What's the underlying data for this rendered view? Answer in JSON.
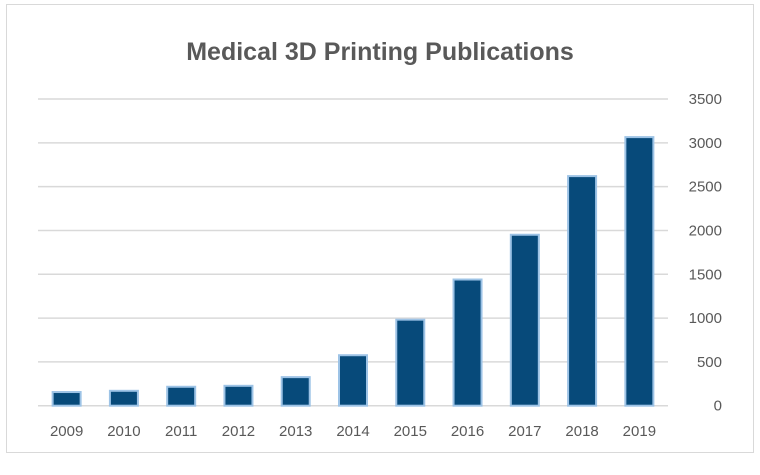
{
  "chart_data": {
    "type": "bar",
    "title": "Medical 3D Printing Publications",
    "xlabel": "",
    "ylabel": "",
    "categories": [
      "2009",
      "2010",
      "2011",
      "2012",
      "2013",
      "2014",
      "2015",
      "2016",
      "2017",
      "2018",
      "2019"
    ],
    "values": [
      156,
      170,
      216,
      227,
      326,
      576,
      982,
      1440,
      1951,
      2620,
      3065
    ],
    "ylim": [
      0,
      3500
    ],
    "yticks": [
      "0",
      "500",
      "1000",
      "1500",
      "2000",
      "2500",
      "3000",
      "3500"
    ],
    "y_axis_side": "right",
    "grid": true,
    "legend": "none",
    "bar_color": "#074a7a",
    "bar_edge_color": "#9dc3e6"
  }
}
